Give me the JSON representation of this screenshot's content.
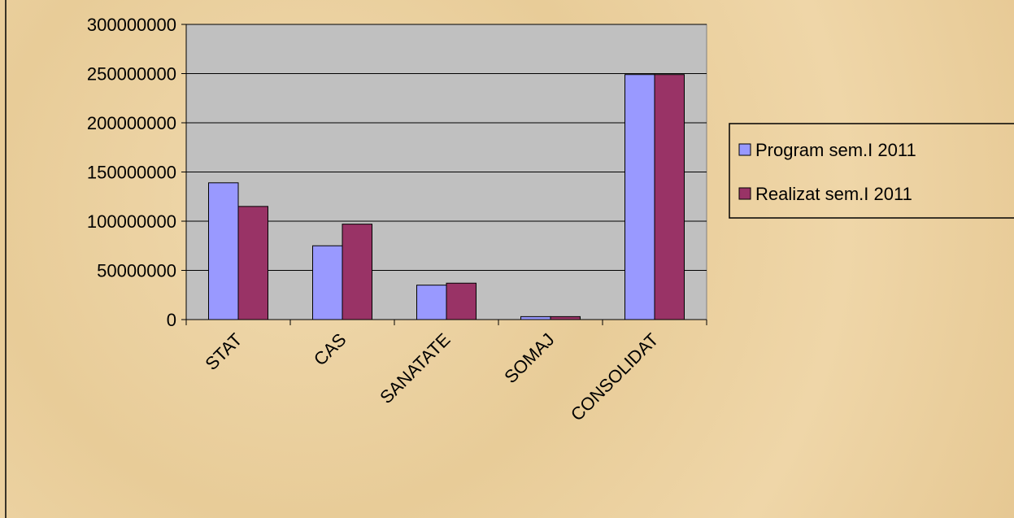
{
  "chart_data": {
    "type": "bar",
    "categories": [
      "STAT",
      "CAS",
      "SANATATE",
      "SOMAJ",
      "CONSOLIDAT"
    ],
    "series": [
      {
        "name": "Program sem.I 2011",
        "color": "#9999ff",
        "values": [
          139000000,
          75000000,
          35000000,
          3000000,
          249000000
        ]
      },
      {
        "name": "Realizat sem.I 2011",
        "color": "#993366",
        "values": [
          115000000,
          97000000,
          37000000,
          3000000,
          249000000
        ]
      }
    ],
    "ylim": [
      0,
      300000000
    ],
    "yticks": [
      0,
      50000000,
      100000000,
      150000000,
      200000000,
      250000000,
      300000000
    ],
    "grid": true,
    "legend": "right"
  }
}
